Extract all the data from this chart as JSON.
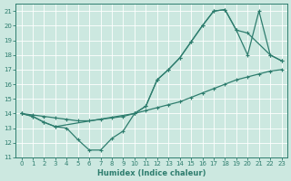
{
  "xlabel": "Humidex (Indice chaleur)",
  "line_color": "#2e7d6e",
  "bg_color": "#cce8e0",
  "grid_color": "#b0d8cc",
  "xlim": [
    -0.5,
    23.5
  ],
  "ylim": [
    11,
    21.5
  ],
  "yticks": [
    11,
    12,
    13,
    14,
    15,
    16,
    17,
    18,
    19,
    20,
    21
  ],
  "xticks": [
    0,
    1,
    2,
    3,
    4,
    5,
    6,
    7,
    8,
    9,
    10,
    11,
    12,
    13,
    14,
    15,
    16,
    17,
    18,
    19,
    20,
    21,
    22,
    23
  ],
  "line1_x": [
    0,
    1,
    2,
    3,
    4,
    5,
    6,
    7,
    8,
    9,
    10,
    11,
    12,
    13,
    14,
    15,
    16,
    17,
    18,
    19,
    20,
    21,
    22,
    23
  ],
  "line1_y": [
    14.0,
    13.9,
    13.8,
    13.7,
    13.6,
    13.5,
    13.5,
    13.6,
    13.7,
    13.8,
    14.0,
    14.2,
    14.4,
    14.6,
    14.8,
    15.1,
    15.4,
    15.7,
    16.0,
    16.3,
    16.5,
    16.7,
    16.9,
    17.0
  ],
  "line2_x": [
    0,
    1,
    2,
    3,
    4,
    5,
    6,
    7,
    8,
    9,
    10,
    11,
    12,
    13,
    14,
    15,
    16,
    17,
    18,
    19,
    20,
    22,
    23
  ],
  "line2_y": [
    14.0,
    13.8,
    13.4,
    13.1,
    13.0,
    12.2,
    11.5,
    11.5,
    12.3,
    12.8,
    14.0,
    14.5,
    16.3,
    17.0,
    17.8,
    18.9,
    20.0,
    21.0,
    21.1,
    19.7,
    19.5,
    18.0,
    17.6
  ],
  "line3_x": [
    0,
    1,
    2,
    3,
    10,
    11,
    12,
    13,
    14,
    15,
    16,
    17,
    18,
    19,
    20,
    21,
    22,
    23
  ],
  "line3_y": [
    14.0,
    13.8,
    13.4,
    13.1,
    14.0,
    14.5,
    16.3,
    17.0,
    17.8,
    18.9,
    20.0,
    21.0,
    21.1,
    19.7,
    18.0,
    21.0,
    18.0,
    17.6
  ]
}
